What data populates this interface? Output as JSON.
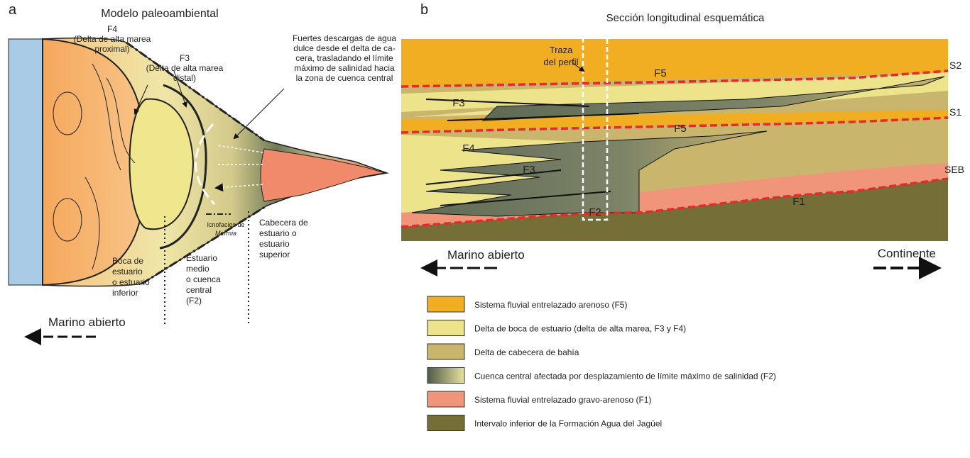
{
  "panel_a": {
    "label": "a",
    "title": "Modelo paleoambiental",
    "f4_label": [
      "F4",
      "(Delta de alta marea",
      "proximal)"
    ],
    "f3_label": [
      "F3",
      "(Delta de alta marea",
      "distal)"
    ],
    "discharge_note": [
      "Fuertes descargas de agua",
      "dulce desde el delta de ca-",
      "cera, trasladando el límite",
      "máximo de salinidad hacia",
      "la zona de cuenca central"
    ],
    "ichnofacies": [
      "Icnofacies de",
      "Mermia"
    ],
    "upper_estuary": [
      "Cabecera de",
      "estuario o",
      "estuario",
      "superior"
    ],
    "middle_estuary": [
      "Estuario",
      "medio",
      "o cuenca",
      "central",
      "(F2)"
    ],
    "lower_estuary": [
      "Boca de",
      "estuario",
      "o estuario",
      "inferior"
    ],
    "open_marine": "Marino abierto"
  },
  "panel_b": {
    "label": "b",
    "title": "Sección longitudinal esquemática",
    "trace": [
      "Traza",
      "del perfil"
    ],
    "facies": [
      "F5",
      "F3",
      "F5",
      "F4",
      "F3",
      "F2",
      "F1"
    ],
    "surfaces": [
      "S2",
      "S1",
      "SEB"
    ],
    "open_marine": "Marino abierto",
    "continent": "Continente"
  },
  "legend": [
    {
      "label": "Sistema fluvial entrelazado arenoso (F5)",
      "color": "#f2ae22"
    },
    {
      "label": "Delta de boca de estuario (delta de alta marea, F3 y F4)",
      "color": "#ece38a"
    },
    {
      "label": "Delta de cabecera de bahía",
      "color": "#c9b56c"
    },
    {
      "label": "Cuenca  central afectada por desplazamiento de límite máximo de salinidad (F2)",
      "color": "gradient"
    },
    {
      "label": "Sistema fluvial entrelazado gravo-arenoso (F1)",
      "color": "#f0957a"
    },
    {
      "label": "Intervalo inferior de la Formación Agua del Jagüel",
      "color": "#756e36"
    }
  ]
}
